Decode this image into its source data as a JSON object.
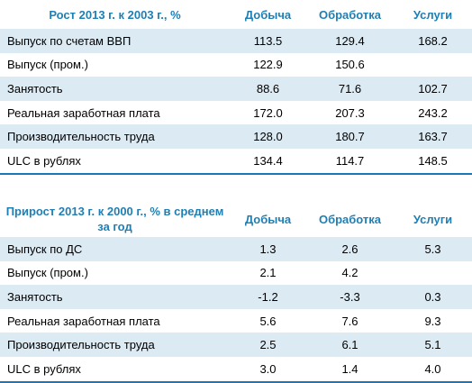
{
  "table1": {
    "header": [
      "Рост 2013 г. к 2003 г., %",
      "Добыча",
      "Обработка",
      "Услуги"
    ],
    "rows": [
      [
        "Выпуск по счетам ВВП",
        "113.5",
        "129.4",
        "168.2"
      ],
      [
        "Выпуск (пром.)",
        "122.9",
        "150.6",
        ""
      ],
      [
        "Занятость",
        "88.6",
        "71.6",
        "102.7"
      ],
      [
        "Реальная заработная плата",
        "172.0",
        "207.3",
        "243.2"
      ],
      [
        "Производительность труда",
        "128.0",
        "180.7",
        "163.7"
      ],
      [
        "ULC в рублях",
        "134.4",
        "114.7",
        "148.5"
      ]
    ]
  },
  "table2": {
    "header": [
      "Прирост 2013 г. к 2000 г., % в среднем за год",
      "Добыча",
      "Обработка",
      "Услуги"
    ],
    "rows": [
      [
        "Выпуск по ДС",
        "1.3",
        "2.6",
        "5.3"
      ],
      [
        "Выпуск (пром.)",
        "2.1",
        "4.2",
        ""
      ],
      [
        "Занятость",
        "-1.2",
        "-3.3",
        "0.3"
      ],
      [
        "Реальная заработная плата",
        "5.6",
        "7.6",
        "9.3"
      ],
      [
        "Производительность труда",
        "2.5",
        "6.1",
        "5.1"
      ],
      [
        "ULC в рублях",
        "3.0",
        "1.4",
        "4.0"
      ]
    ]
  },
  "colors": {
    "header_text": "#1f7fb3",
    "row_shade": "#dceaf3",
    "rule": "#1a78b8"
  }
}
